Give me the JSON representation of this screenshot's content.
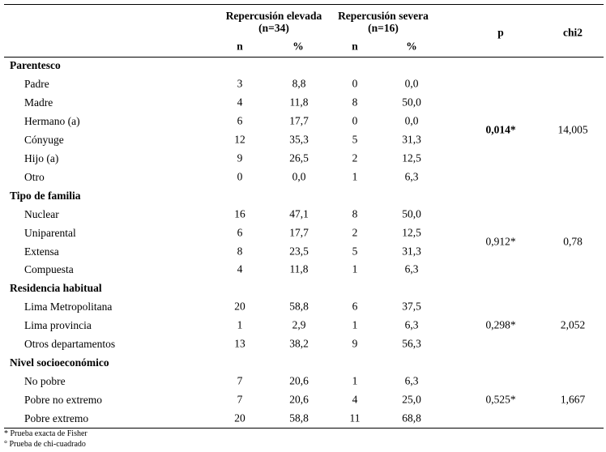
{
  "table": {
    "header": {
      "group1": "Repercusión elevada (n=34)",
      "group2": "Repercusión severa (n=16)",
      "p": "p",
      "chi2": "chi2",
      "sub": [
        "n",
        "%",
        "n",
        "%"
      ]
    },
    "sections": [
      {
        "title": "Parentesco",
        "p": "0,014*",
        "chi2": "14,005",
        "rows": [
          [
            "Padre",
            "3",
            "8,8",
            "0",
            "0,0"
          ],
          [
            "Madre",
            "4",
            "11,8",
            "8",
            "50,0"
          ],
          [
            "Hermano (a)",
            "6",
            "17,7",
            "0",
            "0,0"
          ],
          [
            "Cónyuge",
            "12",
            "35,3",
            "5",
            "31,3"
          ],
          [
            "Hijo (a)",
            "9",
            "26,5",
            "2",
            "12,5"
          ],
          [
            "Otro",
            "0",
            "0,0",
            "1",
            "6,3"
          ]
        ]
      },
      {
        "title": "Tipo de familia",
        "p": "0,912*",
        "chi2": "0,78",
        "rows": [
          [
            "Nuclear",
            "16",
            "47,1",
            "8",
            "50,0"
          ],
          [
            "Uniparental",
            "6",
            "17,7",
            "2",
            "12,5"
          ],
          [
            "Extensa",
            "8",
            "23,5",
            "5",
            "31,3"
          ],
          [
            "Compuesta",
            "4",
            "11,8",
            "1",
            "6,3"
          ]
        ]
      },
      {
        "title": "Residencia habitual",
        "p": "0,298*",
        "chi2": "2,052",
        "rows": [
          [
            "Lima Metropolitana",
            "20",
            "58,8",
            "6",
            "37,5"
          ],
          [
            "Lima provincia",
            "1",
            "2,9",
            "1",
            "6,3"
          ],
          [
            "Otros departamentos",
            "13",
            "38,2",
            "9",
            "56,3"
          ]
        ]
      },
      {
        "title": "Nivel socioeconómico",
        "p": "0,525*",
        "chi2": "1,667",
        "rows": [
          [
            "No pobre",
            "7",
            "20,6",
            "1",
            "6,3"
          ],
          [
            "Pobre no extremo",
            "7",
            "20,6",
            "4",
            "25,0"
          ],
          [
            "Pobre extremo",
            "20",
            "58,8",
            "11",
            "68,8"
          ]
        ]
      }
    ],
    "footnotes": [
      "* Prueba exacta de Fisher",
      "° Prueba de chi-cuadrado"
    ]
  }
}
